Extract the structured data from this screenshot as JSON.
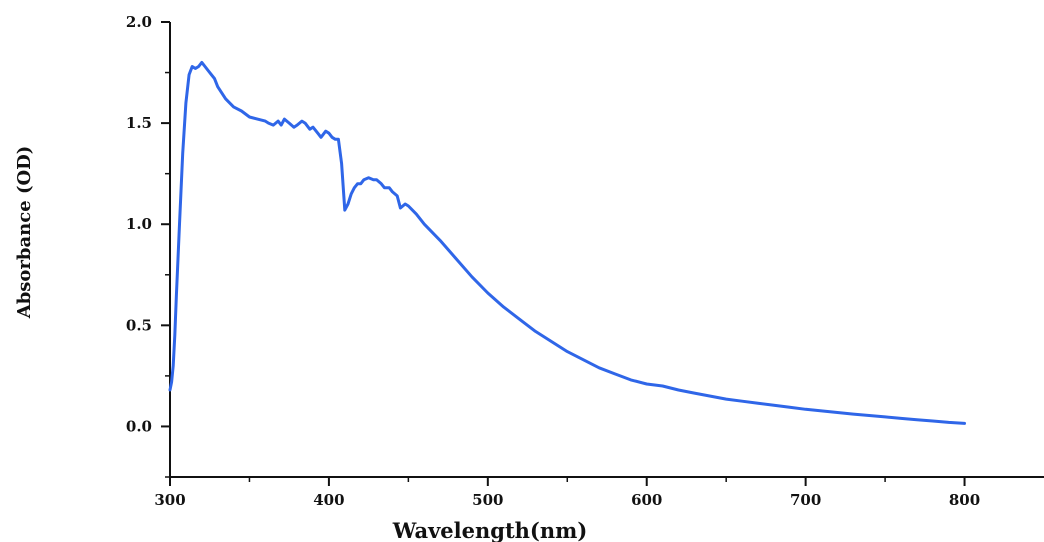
{
  "colors": {
    "line": "#2f66e8",
    "axis": "#111111",
    "background": "#ffffff"
  },
  "chart_data": {
    "type": "line",
    "title": "",
    "xlabel": "Wavelength(nm)",
    "ylabel": "Absorbance (OD)",
    "xlim": [
      300,
      850
    ],
    "ylim": [
      -0.25,
      2.0
    ],
    "x_ticks": [
      300,
      400,
      500,
      600,
      700,
      800
    ],
    "x_tick_labels": [
      "300",
      "400",
      "500",
      "600",
      "700",
      "800"
    ],
    "y_ticks": [
      0.0,
      0.5,
      1.0,
      1.5,
      2.0
    ],
    "y_tick_labels": [
      "0.0",
      "0.5",
      "1.0",
      "1.5",
      "2.0"
    ],
    "grid": false,
    "legend": "none",
    "series": [
      {
        "x": [
          300,
          301,
          302,
          303,
          304,
          306,
          308,
          310,
          312,
          314,
          316,
          318,
          320,
          322,
          324,
          326,
          328,
          330,
          335,
          340,
          345,
          350,
          355,
          360,
          362,
          365,
          368,
          370,
          372,
          375,
          378,
          380,
          383,
          385,
          388,
          390,
          393,
          395,
          398,
          400,
          402,
          404,
          406,
          408,
          410,
          412,
          414,
          416,
          418,
          420,
          422,
          425,
          428,
          430,
          433,
          435,
          438,
          440,
          443,
          445,
          448,
          450,
          455,
          460,
          470,
          480,
          490,
          500,
          510,
          520,
          530,
          540,
          550,
          560,
          570,
          580,
          590,
          600,
          610,
          620,
          630,
          640,
          650,
          660,
          670,
          680,
          690,
          700,
          710,
          720,
          730,
          740,
          750,
          760,
          770,
          780,
          790,
          800
        ],
        "y": [
          0.18,
          0.22,
          0.3,
          0.45,
          0.65,
          1.0,
          1.35,
          1.6,
          1.74,
          1.78,
          1.77,
          1.78,
          1.8,
          1.78,
          1.76,
          1.74,
          1.72,
          1.68,
          1.62,
          1.58,
          1.56,
          1.53,
          1.52,
          1.51,
          1.5,
          1.49,
          1.51,
          1.49,
          1.52,
          1.5,
          1.48,
          1.49,
          1.51,
          1.5,
          1.47,
          1.48,
          1.45,
          1.43,
          1.46,
          1.45,
          1.43,
          1.42,
          1.42,
          1.3,
          1.07,
          1.1,
          1.15,
          1.18,
          1.2,
          1.2,
          1.22,
          1.23,
          1.22,
          1.22,
          1.2,
          1.18,
          1.18,
          1.16,
          1.14,
          1.08,
          1.1,
          1.09,
          1.05,
          1.0,
          0.92,
          0.83,
          0.74,
          0.66,
          0.59,
          0.53,
          0.47,
          0.42,
          0.37,
          0.33,
          0.29,
          0.26,
          0.23,
          0.21,
          0.2,
          0.18,
          0.165,
          0.15,
          0.135,
          0.125,
          0.115,
          0.105,
          0.095,
          0.085,
          0.077,
          0.069,
          0.061,
          0.054,
          0.047,
          0.04,
          0.033,
          0.027,
          0.02,
          0.015
        ]
      }
    ]
  }
}
